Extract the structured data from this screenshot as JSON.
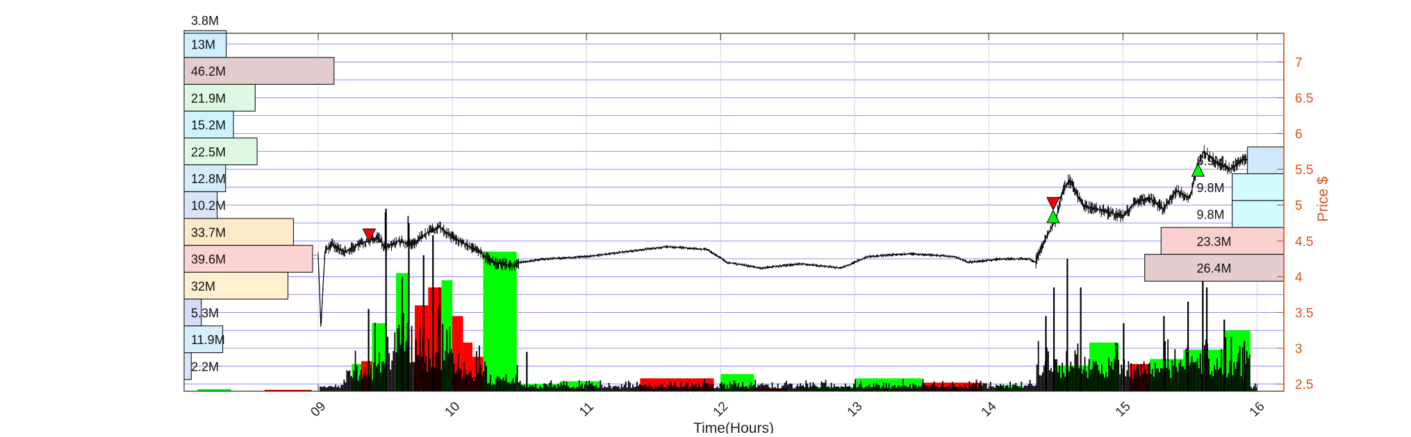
{
  "chart_data": {
    "type": "bar",
    "xlabel": "Time(Hours)",
    "ylabel": "Price $",
    "xlim": [
      8,
      16.2
    ],
    "ylim": [
      2.4,
      7.4
    ],
    "x_ticks": [
      "09",
      "10",
      "11",
      "12",
      "13",
      "14",
      "15",
      "16"
    ],
    "y_ticks": [
      "2.5",
      "3",
      "3.5",
      "4",
      "4.5",
      "5",
      "5.5",
      "6",
      "6.5",
      "7"
    ],
    "grid": true,
    "colors": {
      "price_axis": "#d95319",
      "grid": "#0000ff",
      "up_volume": "#00ff00",
      "down_volume": "#ff0000",
      "price_line": "#000000"
    },
    "volume_profile_left": {
      "top_label": "3.8M",
      "bins": [
        {
          "price": 7.25,
          "label": "13M",
          "value": 13.0,
          "color": "#cfeeff"
        },
        {
          "price": 6.875,
          "label": "46.2M",
          "value": 46.2,
          "color": "#e3cccf"
        },
        {
          "price": 6.5,
          "label": "21.9M",
          "value": 21.9,
          "color": "#dcf8e4"
        },
        {
          "price": 6.125,
          "label": "15.2M",
          "value": 15.2,
          "color": "#cff3fb"
        },
        {
          "price": 5.75,
          "label": "22.5M",
          "value": 22.5,
          "color": "#dff8e4"
        },
        {
          "price": 5.375,
          "label": "12.8M",
          "value": 12.8,
          "color": "#d4edfb"
        },
        {
          "price": 5.0,
          "label": "10.2M",
          "value": 10.2,
          "color": "#d9e4fb"
        },
        {
          "price": 4.625,
          "label": "33.7M",
          "value": 33.7,
          "color": "#fde8c8"
        },
        {
          "price": 4.25,
          "label": "39.6M",
          "value": 39.6,
          "color": "#fbd3d3"
        },
        {
          "price": 3.875,
          "label": "32M",
          "value": 32.0,
          "color": "#fdf0cf"
        },
        {
          "price": 3.5,
          "label": "5.3M",
          "value": 5.3,
          "color": "#d6dafb"
        },
        {
          "price": 3.125,
          "label": "11.9M",
          "value": 11.9,
          "color": "#d4eefb"
        },
        {
          "price": 2.75,
          "label": "2.2M",
          "value": 2.2,
          "color": "#dbe3fb"
        }
      ]
    },
    "volume_profile_right": {
      "bins": [
        {
          "price": 5.625,
          "label": "6.9M",
          "value": 6.9,
          "color": "#cfe8fb"
        },
        {
          "price": 5.25,
          "label": "9.8M",
          "value": 9.8,
          "color": "#d2fbfb"
        },
        {
          "price": 4.875,
          "label": "9.8M",
          "value": 9.8,
          "color": "#d2fbfb"
        },
        {
          "price": 4.5,
          "label": "23.3M",
          "value": 23.3,
          "color": "#fbd0d0"
        },
        {
          "price": 4.125,
          "label": "26.4M",
          "value": 26.4,
          "color": "#e5cccf"
        }
      ]
    },
    "markers": [
      {
        "x": 9.38,
        "y": 4.58,
        "direction": "down",
        "color": "#ff0000"
      },
      {
        "x": 14.48,
        "y": 5.02,
        "direction": "down",
        "color": "#ff0000"
      },
      {
        "x": 14.48,
        "y": 4.84,
        "direction": "up",
        "color": "#00ff00"
      },
      {
        "x": 15.56,
        "y": 5.49,
        "direction": "up",
        "color": "#00ff00"
      }
    ],
    "price_keypoints": [
      [
        9.0,
        4.3
      ],
      [
        9.02,
        3.3
      ],
      [
        9.05,
        4.35
      ],
      [
        9.1,
        4.45
      ],
      [
        9.2,
        4.35
      ],
      [
        9.3,
        4.45
      ],
      [
        9.45,
        4.55
      ],
      [
        9.5,
        4.4
      ],
      [
        9.6,
        4.5
      ],
      [
        9.7,
        4.45
      ],
      [
        9.8,
        4.6
      ],
      [
        9.9,
        4.7
      ],
      [
        10.0,
        4.55
      ],
      [
        10.1,
        4.45
      ],
      [
        10.2,
        4.35
      ],
      [
        10.3,
        4.2
      ],
      [
        10.45,
        4.15
      ],
      [
        10.5,
        4.2
      ],
      [
        10.7,
        4.25
      ],
      [
        11.0,
        4.28
      ],
      [
        11.3,
        4.35
      ],
      [
        11.6,
        4.42
      ],
      [
        11.9,
        4.38
      ],
      [
        12.05,
        4.2
      ],
      [
        12.3,
        4.12
      ],
      [
        12.6,
        4.18
      ],
      [
        12.9,
        4.12
      ],
      [
        13.1,
        4.28
      ],
      [
        13.4,
        4.32
      ],
      [
        13.75,
        4.28
      ],
      [
        13.85,
        4.2
      ],
      [
        14.1,
        4.25
      ],
      [
        14.3,
        4.25
      ],
      [
        14.35,
        4.2
      ],
      [
        14.4,
        4.45
      ],
      [
        14.5,
        4.8
      ],
      [
        14.55,
        5.2
      ],
      [
        14.6,
        5.35
      ],
      [
        14.7,
        5.0
      ],
      [
        14.85,
        4.92
      ],
      [
        15.0,
        4.85
      ],
      [
        15.1,
        5.05
      ],
      [
        15.2,
        5.1
      ],
      [
        15.3,
        4.95
      ],
      [
        15.4,
        5.2
      ],
      [
        15.5,
        5.1
      ],
      [
        15.55,
        5.5
      ],
      [
        15.6,
        5.75
      ],
      [
        15.7,
        5.6
      ],
      [
        15.8,
        5.5
      ],
      [
        15.9,
        5.65
      ],
      [
        16.0,
        5.6
      ]
    ],
    "volume_blocks": [
      {
        "x0": 8.1,
        "x1": 8.35,
        "height": 0.03,
        "color": "#00ff00"
      },
      {
        "x0": 8.6,
        "x1": 8.95,
        "height": 0.02,
        "color": "#ff0000"
      },
      {
        "x0": 9.25,
        "x1": 9.38,
        "height": 0.38,
        "color": "#00ff00"
      },
      {
        "x0": 9.32,
        "x1": 9.42,
        "height": 0.42,
        "color": "#ff0000"
      },
      {
        "x0": 9.4,
        "x1": 9.5,
        "height": 0.95,
        "color": "#00ff00"
      },
      {
        "x0": 9.58,
        "x1": 9.68,
        "height": 1.65,
        "color": "#00ff00"
      },
      {
        "x0": 9.72,
        "x1": 9.82,
        "height": 1.2,
        "color": "#ff0000"
      },
      {
        "x0": 9.82,
        "x1": 9.92,
        "height": 1.45,
        "color": "#ff0000"
      },
      {
        "x0": 9.92,
        "x1": 10.0,
        "height": 1.55,
        "color": "#00ff00"
      },
      {
        "x0": 10.0,
        "x1": 10.08,
        "height": 1.05,
        "color": "#ff0000"
      },
      {
        "x0": 10.08,
        "x1": 10.15,
        "height": 0.68,
        "color": "#ff0000"
      },
      {
        "x0": 10.15,
        "x1": 10.23,
        "height": 0.48,
        "color": "#ff0000"
      },
      {
        "x0": 10.23,
        "x1": 10.48,
        "height": 1.95,
        "color": "#00ff00"
      },
      {
        "x0": 10.5,
        "x1": 10.8,
        "height": 0.1,
        "color": "#00ff00"
      },
      {
        "x0": 10.8,
        "x1": 11.1,
        "height": 0.14,
        "color": "#00ff00"
      },
      {
        "x0": 11.4,
        "x1": 11.95,
        "height": 0.18,
        "color": "#ff0000"
      },
      {
        "x0": 12.0,
        "x1": 12.25,
        "height": 0.24,
        "color": "#00ff00"
      },
      {
        "x0": 12.25,
        "x1": 12.5,
        "height": 0.04,
        "color": "#ff0000"
      },
      {
        "x0": 12.6,
        "x1": 13.0,
        "height": 0.06,
        "color": "#00ff00"
      },
      {
        "x0": 13.0,
        "x1": 13.5,
        "height": 0.18,
        "color": "#00ff00"
      },
      {
        "x0": 13.5,
        "x1": 13.95,
        "height": 0.12,
        "color": "#ff0000"
      },
      {
        "x0": 14.05,
        "x1": 14.25,
        "height": 0.08,
        "color": "#00ff00"
      },
      {
        "x0": 14.5,
        "x1": 14.75,
        "height": 0.36,
        "color": "#00ff00"
      },
      {
        "x0": 14.75,
        "x1": 14.97,
        "height": 0.68,
        "color": "#00ff00"
      },
      {
        "x0": 15.05,
        "x1": 15.2,
        "height": 0.38,
        "color": "#ff0000"
      },
      {
        "x0": 15.2,
        "x1": 15.45,
        "height": 0.45,
        "color": "#00ff00"
      },
      {
        "x0": 15.45,
        "x1": 15.75,
        "height": 0.58,
        "color": "#00ff00"
      },
      {
        "x0": 15.75,
        "x1": 15.95,
        "height": 0.85,
        "color": "#00ff00"
      }
    ],
    "volume_spikes": [
      {
        "x": 9.5,
        "height": 2.55
      },
      {
        "x": 9.67,
        "height": 2.35
      },
      {
        "x": 9.85,
        "height": 2.18
      },
      {
        "x": 9.37,
        "height": 1.15
      },
      {
        "x": 9.62,
        "height": 1.6
      },
      {
        "x": 9.78,
        "height": 1.9
      },
      {
        "x": 9.9,
        "height": 1.45
      },
      {
        "x": 10.55,
        "height": 0.55
      },
      {
        "x": 14.42,
        "height": 1.05
      },
      {
        "x": 14.48,
        "height": 1.45
      },
      {
        "x": 14.58,
        "height": 1.85
      },
      {
        "x": 14.68,
        "height": 1.45
      },
      {
        "x": 15.0,
        "height": 0.95
      },
      {
        "x": 15.3,
        "height": 1.05
      },
      {
        "x": 15.48,
        "height": 1.25
      },
      {
        "x": 15.59,
        "height": 1.8
      },
      {
        "x": 15.62,
        "height": 1.45
      },
      {
        "x": 15.75,
        "height": 1.0
      },
      {
        "x": 15.9,
        "height": 0.7
      }
    ]
  }
}
